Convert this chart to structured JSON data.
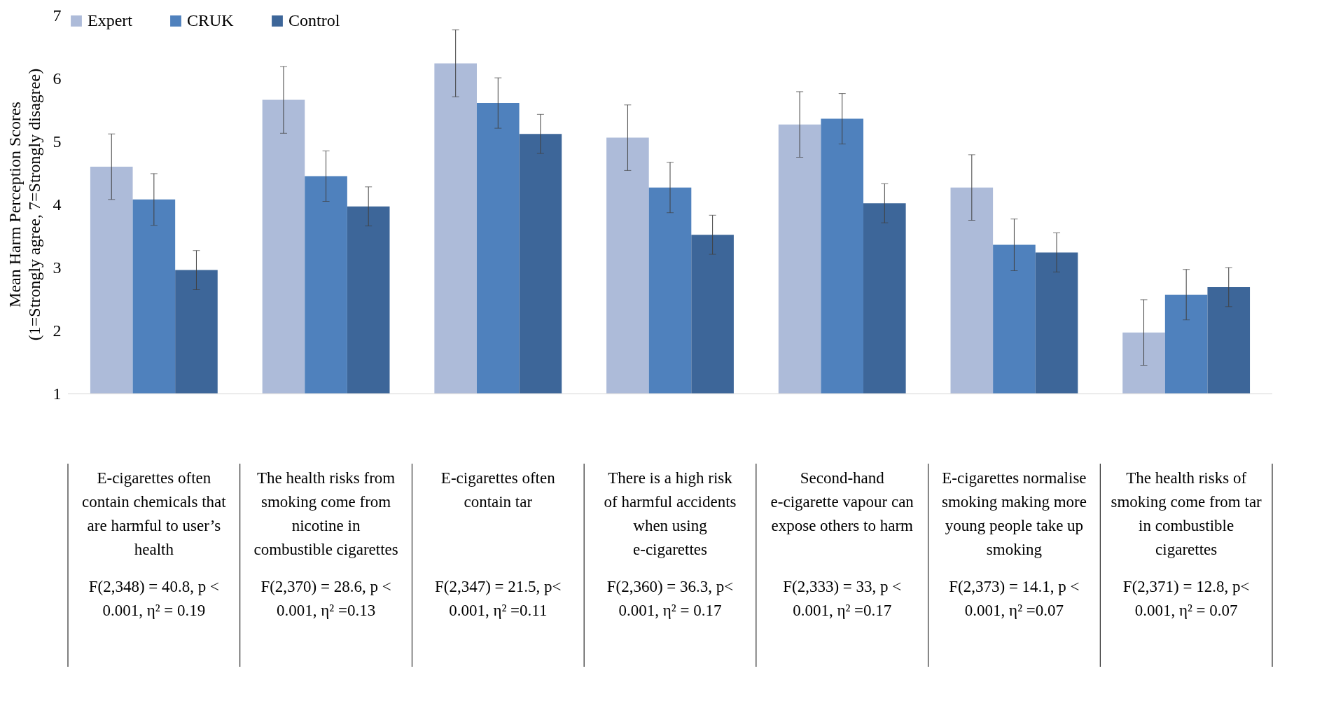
{
  "chart_data": {
    "type": "bar",
    "ylabel": "Mean Harm Perception Scores (1=Strongly agree, 7=Strongly disagree)",
    "categories": [
      "E-cigarettes often contain chemicals that are harmful to user’s health",
      "The health risks from smoking come from nicotine in combustible cigarettes",
      "E-cigarettes often contain tar",
      "There is a high risk of harmful accidents when using e-cigarettes",
      "Second-hand e-cigarette vapour can expose others to harm",
      "E-cigarettes normalise smoking making more young people take up smoking",
      "The health risks of smoking come from tar in combustible cigarettes"
    ],
    "series": [
      {
        "name": "Expert",
        "color": "#adbbd9",
        "values": [
          4.6,
          5.66,
          6.24,
          5.06,
          5.27,
          4.27,
          1.97
        ],
        "errors": [
          0.52,
          0.53,
          0.53,
          0.52,
          0.52,
          0.52,
          0.52
        ]
      },
      {
        "name": "CRUK",
        "color": "#4f81bd",
        "values": [
          4.08,
          4.45,
          5.61,
          4.27,
          5.36,
          3.36,
          2.57
        ],
        "errors": [
          0.41,
          0.4,
          0.4,
          0.4,
          0.4,
          0.41,
          0.4
        ]
      },
      {
        "name": "Control",
        "color": "#3d6699",
        "values": [
          2.96,
          3.97,
          5.12,
          3.52,
          4.02,
          3.24,
          2.69
        ],
        "errors": [
          0.31,
          0.31,
          0.31,
          0.31,
          0.31,
          0.31,
          0.31
        ]
      }
    ],
    "annotations": [
      "F(2,348) = 40.8, p < 0.001, η² = 0.19",
      "F(2,370) = 28.6, p < 0.001, η² =0.13",
      "F(2,347) = 21.5, p< 0.001, η² =0.11",
      "F(2,360) = 36.3, p< 0.001, η² = 0.17",
      "F(2,333) = 33, p < 0.001, η² =0.17",
      "F(2,373) = 14.1, p < 0.001, η² =0.07",
      "F(2,371) = 12.8, p< 0.001, η² = 0.07"
    ],
    "ylim": [
      1,
      7
    ],
    "yticks": [
      1,
      2,
      3,
      4,
      5,
      6,
      7
    ],
    "grid": false,
    "legend": "top"
  }
}
